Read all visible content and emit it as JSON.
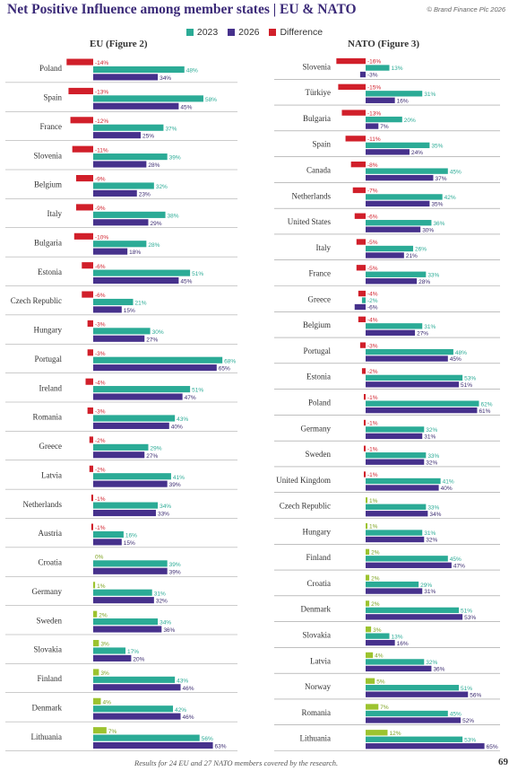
{
  "header": {
    "title": "Net Positive Influence among member states | EU & NATO",
    "copyright": "© Brand Finance Plc 2026"
  },
  "legend": [
    {
      "label": "2023",
      "color": "#2bab96"
    },
    {
      "label": "2026",
      "color": "#46318c"
    },
    {
      "label": "Difference",
      "color": "#d11f2a"
    }
  ],
  "colors": {
    "y2023": "#2bab96",
    "y2026": "#46318c",
    "negative": "#d11f2a",
    "positive": "#9cc32f",
    "gridline": "#999999"
  },
  "footer": {
    "footnote": "Results for 24 EU and 27 NATO members covered by the research.",
    "page_number": "69"
  },
  "chart_data": [
    {
      "type": "bar",
      "title": "EU (Figure 2)",
      "series_names": [
        "2023",
        "2026",
        "Difference"
      ],
      "rows": [
        {
          "label": "Poland",
          "y2023": 48,
          "y2026": 34,
          "diff": -14
        },
        {
          "label": "Spain",
          "y2023": 58,
          "y2026": 45,
          "diff": -13
        },
        {
          "label": "France",
          "y2023": 37,
          "y2026": 25,
          "diff": -12
        },
        {
          "label": "Slovenia",
          "y2023": 39,
          "y2026": 28,
          "diff": -11
        },
        {
          "label": "Belgium",
          "y2023": 32,
          "y2026": 23,
          "diff": -9
        },
        {
          "label": "Italy",
          "y2023": 38,
          "y2026": 29,
          "diff": -9
        },
        {
          "label": "Bulgaria",
          "y2023": 28,
          "y2026": 18,
          "diff": -10
        },
        {
          "label": "Estonia",
          "y2023": 51,
          "y2026": 45,
          "diff": -6
        },
        {
          "label": "Czech Republic",
          "y2023": 21,
          "y2026": 15,
          "diff": -6
        },
        {
          "label": "Hungary",
          "y2023": 30,
          "y2026": 27,
          "diff": -3
        },
        {
          "label": "Portugal",
          "y2023": 68,
          "y2026": 65,
          "diff": -3
        },
        {
          "label": "Ireland",
          "y2023": 51,
          "y2026": 47,
          "diff": -4
        },
        {
          "label": "Romania",
          "y2023": 43,
          "y2026": 40,
          "diff": -3
        },
        {
          "label": "Greece",
          "y2023": 29,
          "y2026": 27,
          "diff": -2
        },
        {
          "label": "Latvia",
          "y2023": 41,
          "y2026": 39,
          "diff": -2
        },
        {
          "label": "Netherlands",
          "y2023": 34,
          "y2026": 33,
          "diff": -1
        },
        {
          "label": "Austria",
          "y2023": 16,
          "y2026": 15,
          "diff": -1
        },
        {
          "label": "Croatia",
          "y2023": 39,
          "y2026": 39,
          "diff": 0
        },
        {
          "label": "Germany",
          "y2023": 31,
          "y2026": 32,
          "diff": 1
        },
        {
          "label": "Sweden",
          "y2023": 34,
          "y2026": 36,
          "diff": 2
        },
        {
          "label": "Slovakia",
          "y2023": 17,
          "y2026": 20,
          "diff": 3
        },
        {
          "label": "Finland",
          "y2023": 43,
          "y2026": 46,
          "diff": 3
        },
        {
          "label": "Denmark",
          "y2023": 42,
          "y2026": 46,
          "diff": 4
        },
        {
          "label": "Lithuania",
          "y2023": 56,
          "y2026": 63,
          "diff": 7
        }
      ]
    },
    {
      "type": "bar",
      "title": "NATO (Figure 3)",
      "series_names": [
        "2023",
        "2026",
        "Difference"
      ],
      "rows": [
        {
          "label": "Slovenia",
          "y2023": 13,
          "y2026": -3,
          "diff": -16
        },
        {
          "label": "Türkiye",
          "y2023": 31,
          "y2026": 16,
          "diff": -15
        },
        {
          "label": "Bulgaria",
          "y2023": 20,
          "y2026": 7,
          "diff": -13
        },
        {
          "label": "Spain",
          "y2023": 35,
          "y2026": 24,
          "diff": -11
        },
        {
          "label": "Canada",
          "y2023": 45,
          "y2026": 37,
          "diff": -8
        },
        {
          "label": "Netherlands",
          "y2023": 42,
          "y2026": 35,
          "diff": -7
        },
        {
          "label": "United States",
          "y2023": 36,
          "y2026": 30,
          "diff": -6
        },
        {
          "label": "Italy",
          "y2023": 26,
          "y2026": 21,
          "diff": -5
        },
        {
          "label": "France",
          "y2023": 33,
          "y2026": 28,
          "diff": -5
        },
        {
          "label": "Greece",
          "y2023": -2,
          "y2026": -6,
          "diff": -4
        },
        {
          "label": "Belgium",
          "y2023": 31,
          "y2026": 27,
          "diff": -4
        },
        {
          "label": "Portugal",
          "y2023": 48,
          "y2026": 45,
          "diff": -3
        },
        {
          "label": "Estonia",
          "y2023": 53,
          "y2026": 51,
          "diff": -2
        },
        {
          "label": "Poland",
          "y2023": 62,
          "y2026": 61,
          "diff": -1
        },
        {
          "label": "Germany",
          "y2023": 32,
          "y2026": 31,
          "diff": -1
        },
        {
          "label": "Sweden",
          "y2023": 33,
          "y2026": 32,
          "diff": -1
        },
        {
          "label": "United Kingdom",
          "y2023": 41,
          "y2026": 40,
          "diff": -1
        },
        {
          "label": "Czech Republic",
          "y2023": 33,
          "y2026": 34,
          "diff": 1
        },
        {
          "label": "Hungary",
          "y2023": 31,
          "y2026": 32,
          "diff": 1
        },
        {
          "label": "Finland",
          "y2023": 45,
          "y2026": 47,
          "diff": 2
        },
        {
          "label": "Croatia",
          "y2023": 29,
          "y2026": 31,
          "diff": 2
        },
        {
          "label": "Denmark",
          "y2023": 51,
          "y2026": 53,
          "diff": 2
        },
        {
          "label": "Slovakia",
          "y2023": 13,
          "y2026": 16,
          "diff": 3
        },
        {
          "label": "Latvia",
          "y2023": 32,
          "y2026": 36,
          "diff": 4
        },
        {
          "label": "Norway",
          "y2023": 51,
          "y2026": 56,
          "diff": 5
        },
        {
          "label": "Romania",
          "y2023": 45,
          "y2026": 52,
          "diff": 7
        },
        {
          "label": "Lithuania",
          "y2023": 53,
          "y2026": 65,
          "diff": 12
        }
      ]
    }
  ]
}
